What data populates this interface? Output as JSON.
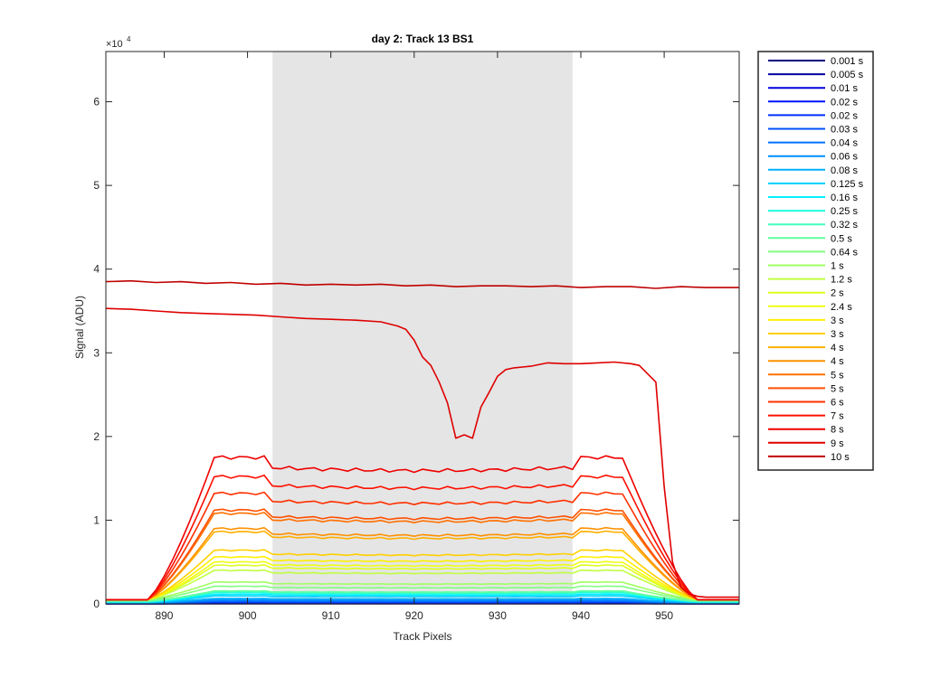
{
  "chart_data": {
    "type": "line",
    "title": "day 2: Track 13  BS1",
    "xlabel": "Track Pixels",
    "ylabel": "Signal (ADU)",
    "xlim": [
      883,
      959
    ],
    "ylim": [
      0,
      66000
    ],
    "xticks": [
      890,
      900,
      910,
      920,
      930,
      940,
      950
    ],
    "xtick_labels": [
      "890",
      "900",
      "910",
      "920",
      "930",
      "940",
      "950"
    ],
    "yticks": [
      0,
      10000,
      20000,
      30000,
      40000,
      50000,
      60000
    ],
    "ytick_labels": [
      "0",
      "1",
      "2",
      "3",
      "4",
      "5",
      "6"
    ],
    "y_exponent_base": "×10",
    "y_exponent_power": "4",
    "shaded_region": {
      "x0": 903,
      "x1": 939,
      "color": "#e5e5e5"
    },
    "grid": false,
    "legend_position": "outside-right",
    "series": [
      {
        "name": "0.001 s",
        "color": "#00007f",
        "plateau": 12
      },
      {
        "name": "0.005 s",
        "color": "#00009f",
        "plateau": 45
      },
      {
        "name": "0.01 s",
        "color": "#0000df",
        "plateau": 90
      },
      {
        "name": "0.02 s",
        "color": "#0010ff",
        "plateau": 160
      },
      {
        "name": "0.02 s",
        "color": "#0030ff",
        "plateau": 180
      },
      {
        "name": "0.03 s",
        "color": "#0050ff",
        "plateau": 260
      },
      {
        "name": "0.04 s",
        "color": "#0070ff",
        "plateau": 340
      },
      {
        "name": "0.06 s",
        "color": "#0090ff",
        "plateau": 500
      },
      {
        "name": "0.08 s",
        "color": "#00b0ff",
        "plateau": 650
      },
      {
        "name": "0.125 s",
        "color": "#00d0ff",
        "plateau": 950
      },
      {
        "name": "0.16 s",
        "color": "#00f0ff",
        "plateau": 1150
      },
      {
        "name": "0.25 s",
        "color": "#20ffdf",
        "plateau": 1350
      },
      {
        "name": "0.32 s",
        "color": "#40ffbf",
        "plateau": 1450
      },
      {
        "name": "0.5 s",
        "color": "#60ff9f",
        "plateau": 1550
      },
      {
        "name": "0.64 s",
        "color": "#80ff7f",
        "plateau": 2100
      },
      {
        "name": "1 s",
        "color": "#9fff60",
        "plateau": 2600
      },
      {
        "name": "1.2 s",
        "color": "#bfff40",
        "plateau": 4000
      },
      {
        "name": "2 s",
        "color": "#dfff20",
        "plateau": 4600
      },
      {
        "name": "2.4 s",
        "color": "#f0ff10",
        "plateau": 5000
      },
      {
        "name": "3 s",
        "color": "#ffef00",
        "plateau": 5600
      },
      {
        "name": "3 s",
        "color": "#ffd000",
        "plateau": 6400
      },
      {
        "name": "4 s",
        "color": "#ffb000",
        "plateau": 8600
      },
      {
        "name": "4 s",
        "color": "#ff9000",
        "plateau": 9000
      },
      {
        "name": "5 s",
        "color": "#ff7000",
        "plateau": 10800
      },
      {
        "name": "5 s",
        "color": "#ff5000",
        "plateau": 11200
      },
      {
        "name": "6 s",
        "color": "#ff3000",
        "plateau": 13200
      },
      {
        "name": "7 s",
        "color": "#ff1000",
        "plateau": 15200
      },
      {
        "name": "8 s",
        "color": "#ef0000",
        "plateau": 17500
      },
      {
        "name": "9 s",
        "color": "#df0000",
        "x": [
          883,
          886,
          889,
          892,
          895,
          898,
          901,
          904,
          907,
          910,
          913,
          916,
          918,
          919,
          920,
          921,
          922,
          923,
          924,
          925,
          926,
          927,
          928,
          929,
          930,
          931,
          932,
          933,
          934,
          936,
          938,
          940,
          942,
          944,
          946,
          947,
          948,
          949,
          950,
          951,
          952,
          953,
          954,
          955,
          957,
          959
        ],
        "y": [
          35300,
          35200,
          35000,
          34800,
          34700,
          34600,
          34500,
          34300,
          34100,
          34000,
          33900,
          33700,
          33200,
          32800,
          31500,
          29500,
          28500,
          26500,
          24000,
          19800,
          20200,
          19800,
          23500,
          25300,
          27200,
          28000,
          28200,
          28300,
          28400,
          28800,
          28700,
          28700,
          28800,
          28900,
          28700,
          28500,
          27500,
          26500,
          14000,
          5000,
          2000,
          1200,
          900,
          800,
          800,
          800
        ]
      },
      {
        "name": "10 s",
        "color": "#bf0000",
        "x": [
          883,
          886,
          889,
          892,
          895,
          898,
          901,
          904,
          907,
          910,
          913,
          916,
          919,
          922,
          925,
          928,
          931,
          934,
          937,
          940,
          943,
          946,
          949,
          952,
          955,
          957,
          959
        ],
        "y": [
          38500,
          38600,
          38400,
          38500,
          38300,
          38400,
          38200,
          38300,
          38100,
          38200,
          38100,
          38200,
          38000,
          38100,
          37900,
          38000,
          38000,
          37900,
          38000,
          37800,
          37900,
          37900,
          37700,
          37900,
          37800,
          37800,
          37800
        ]
      }
    ]
  }
}
